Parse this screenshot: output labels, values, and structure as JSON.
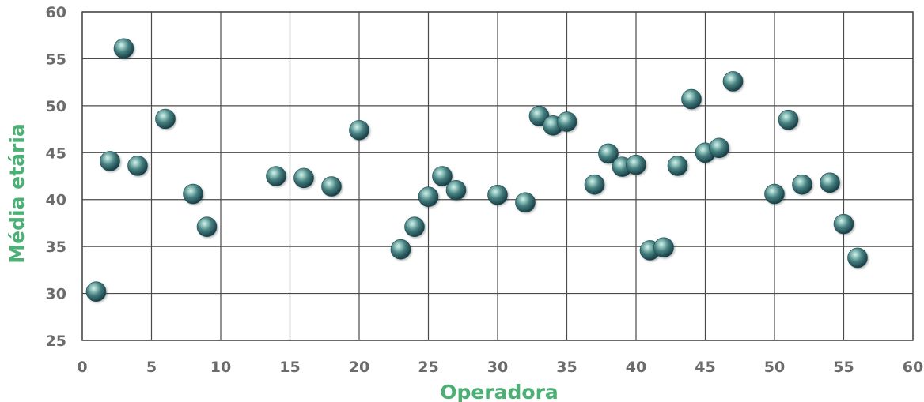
{
  "chart_data": {
    "type": "scatter",
    "xlabel": "Operadora",
    "ylabel": "Média etária",
    "xlim": [
      0,
      60
    ],
    "ylim": [
      25,
      60
    ],
    "x_ticks": [
      0,
      5,
      10,
      15,
      20,
      25,
      30,
      35,
      40,
      45,
      50,
      55,
      60
    ],
    "y_ticks": [
      25,
      30,
      35,
      40,
      45,
      50,
      55,
      60
    ],
    "grid": true,
    "legend": false,
    "colors": {
      "axis_title": "#4caf73",
      "tick_label": "#6b6b6b",
      "marker_light": "#aacfcc",
      "marker_mid": "#3f7f7f",
      "marker_dark": "#163b43",
      "grid": "#4a4a4a"
    },
    "series": [
      {
        "points": [
          {
            "x": 1,
            "y": 30.2
          },
          {
            "x": 2,
            "y": 44.1
          },
          {
            "x": 3,
            "y": 56.1
          },
          {
            "x": 4,
            "y": 43.6
          },
          {
            "x": 6,
            "y": 48.6
          },
          {
            "x": 8,
            "y": 40.6
          },
          {
            "x": 9,
            "y": 37.1
          },
          {
            "x": 14,
            "y": 42.5
          },
          {
            "x": 16,
            "y": 42.3
          },
          {
            "x": 18,
            "y": 41.4
          },
          {
            "x": 20,
            "y": 47.4
          },
          {
            "x": 23,
            "y": 34.7
          },
          {
            "x": 24,
            "y": 37.1
          },
          {
            "x": 25,
            "y": 40.3
          },
          {
            "x": 26,
            "y": 42.5
          },
          {
            "x": 27,
            "y": 41.0
          },
          {
            "x": 30,
            "y": 40.5
          },
          {
            "x": 32,
            "y": 39.7
          },
          {
            "x": 33,
            "y": 48.9
          },
          {
            "x": 34,
            "y": 47.9
          },
          {
            "x": 35,
            "y": 48.3
          },
          {
            "x": 37,
            "y": 41.6
          },
          {
            "x": 38,
            "y": 44.9
          },
          {
            "x": 39,
            "y": 43.5
          },
          {
            "x": 40,
            "y": 43.7
          },
          {
            "x": 41,
            "y": 34.6
          },
          {
            "x": 42,
            "y": 34.9
          },
          {
            "x": 43,
            "y": 43.6
          },
          {
            "x": 44,
            "y": 50.7
          },
          {
            "x": 45,
            "y": 45.0
          },
          {
            "x": 46,
            "y": 45.5
          },
          {
            "x": 47,
            "y": 52.6
          },
          {
            "x": 50,
            "y": 40.6
          },
          {
            "x": 51,
            "y": 48.5
          },
          {
            "x": 52,
            "y": 41.6
          },
          {
            "x": 54,
            "y": 41.8
          },
          {
            "x": 55,
            "y": 37.4
          },
          {
            "x": 56,
            "y": 33.8
          }
        ]
      }
    ]
  }
}
